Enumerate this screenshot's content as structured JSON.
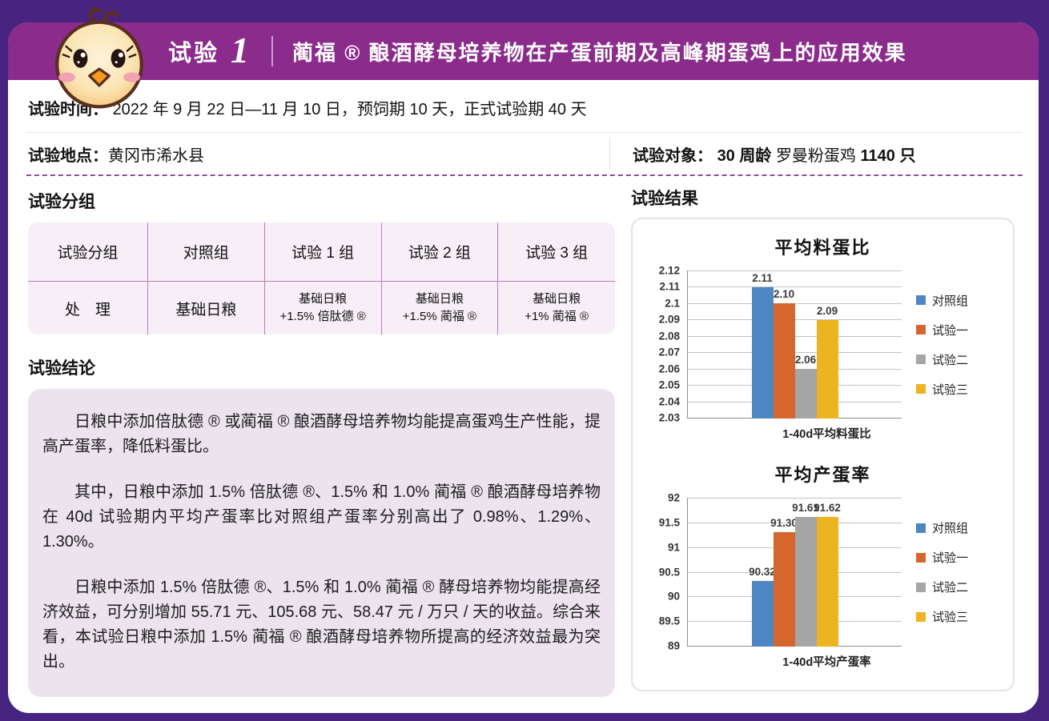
{
  "header": {
    "trial_label": "试验",
    "trial_number": "1",
    "title": "蔺福 ® 酿酒酵母培养物在产蛋前期及高峰期蛋鸡上的应用效果"
  },
  "info": {
    "time_label": "试验时间：",
    "time_value": "2022 年 9 月 22 日—11 月 10 日，预饲期 10 天，正式试验期 40 天",
    "location_label": "试验地点：",
    "location_value": "黄冈市浠水县",
    "subject_label": "试验对象：",
    "subject_bold1": "30 周龄",
    "subject_regular": "罗曼粉蛋鸡 ",
    "subject_bold2": "1140 只"
  },
  "groups": {
    "heading": "试验分组",
    "table": {
      "header_row": [
        "试验分组",
        "对照组",
        "试验 1 组",
        "试验 2 组",
        "试验 3 组"
      ],
      "data_row": [
        "处　理",
        "基础日粮",
        "基础日粮\n+1.5% 倍肽德 ®",
        "基础日粮\n+1.5% 蔺福 ®",
        "基础日粮\n+1% 蔺福 ®"
      ]
    }
  },
  "conclusion": {
    "heading": "试验结论",
    "paragraphs": [
      "日粮中添加倍肽德 ® 或蔺福 ® 酿酒酵母培养物均能提高蛋鸡生产性能，提高产蛋率，降低料蛋比。",
      "其中，日粮中添加 1.5% 倍肽德 ®、1.5% 和 1.0% 蔺福 ® 酿酒酵母培养物在 40d 试验期内平均产蛋率比对照组产蛋率分别高出了 0.98%、1.29%、1.30%。",
      "日粮中添加 1.5% 倍肽德 ®、1.5% 和 1.0% 蔺福 ® 酵母培养物均能提高经济效益，可分别增加 55.71 元、105.68 元、58.47 元 / 万只 / 天的收益。综合来看，本试验日粮中添加 1.5% 蔺福 ® 酿酒酵母培养物所提高的经济效益最为突出。"
    ]
  },
  "results": {
    "heading": "试验结果"
  },
  "chart_data": [
    {
      "type": "bar",
      "title": "平均料蛋比",
      "categories": [
        "对照组",
        "试验一",
        "试验二",
        "试验三"
      ],
      "values": [
        2.11,
        2.1,
        2.06,
        2.09
      ],
      "value_labels": [
        "2.11",
        "2.10",
        "2.06",
        "2.09"
      ],
      "colors": [
        "#4e86c4",
        "#d4662e",
        "#a6a6a6",
        "#eeb320"
      ],
      "xlabel": "1-40d平均料蛋比",
      "ylabel": "",
      "ylim": [
        2.03,
        2.12
      ],
      "yticks": [
        "2.12",
        "2.11",
        "2.1",
        "2.09",
        "2.08",
        "2.07",
        "2.06",
        "2.05",
        "2.04",
        "2.03"
      ],
      "legend": [
        "对照组",
        "试验一",
        "试验二",
        "试验三"
      ],
      "legend_position": "right",
      "grid": true
    },
    {
      "type": "bar",
      "title": "平均产蛋率",
      "categories": [
        "对照组",
        "试验一",
        "试验二",
        "试验三"
      ],
      "values": [
        90.32,
        91.3,
        91.61,
        91.62
      ],
      "value_labels": [
        "90.32",
        "91.30",
        "91.61",
        "91.62"
      ],
      "colors": [
        "#4e86c4",
        "#d4662e",
        "#a6a6a6",
        "#eeb320"
      ],
      "xlabel": "1-40d平均产蛋率",
      "ylabel": "",
      "ylim": [
        89,
        92
      ],
      "yticks": [
        "92",
        "91.5",
        "91",
        "90.5",
        "90",
        "89.5",
        "89"
      ],
      "legend": [
        "对照组",
        "试验一",
        "试验二",
        "试验三"
      ],
      "legend_position": "right",
      "grid": true
    }
  ],
  "colors": {
    "page_background": "#472480",
    "band": "#8b2b8c",
    "dashed_line": "#8b4aa0",
    "table_fill": "#f7eef7",
    "conclusion_fill": "#ece3ee",
    "bar_blue": "#4e86c4",
    "bar_orange": "#d4662e",
    "bar_gray": "#a6a6a6",
    "bar_yellow": "#eeb320"
  }
}
